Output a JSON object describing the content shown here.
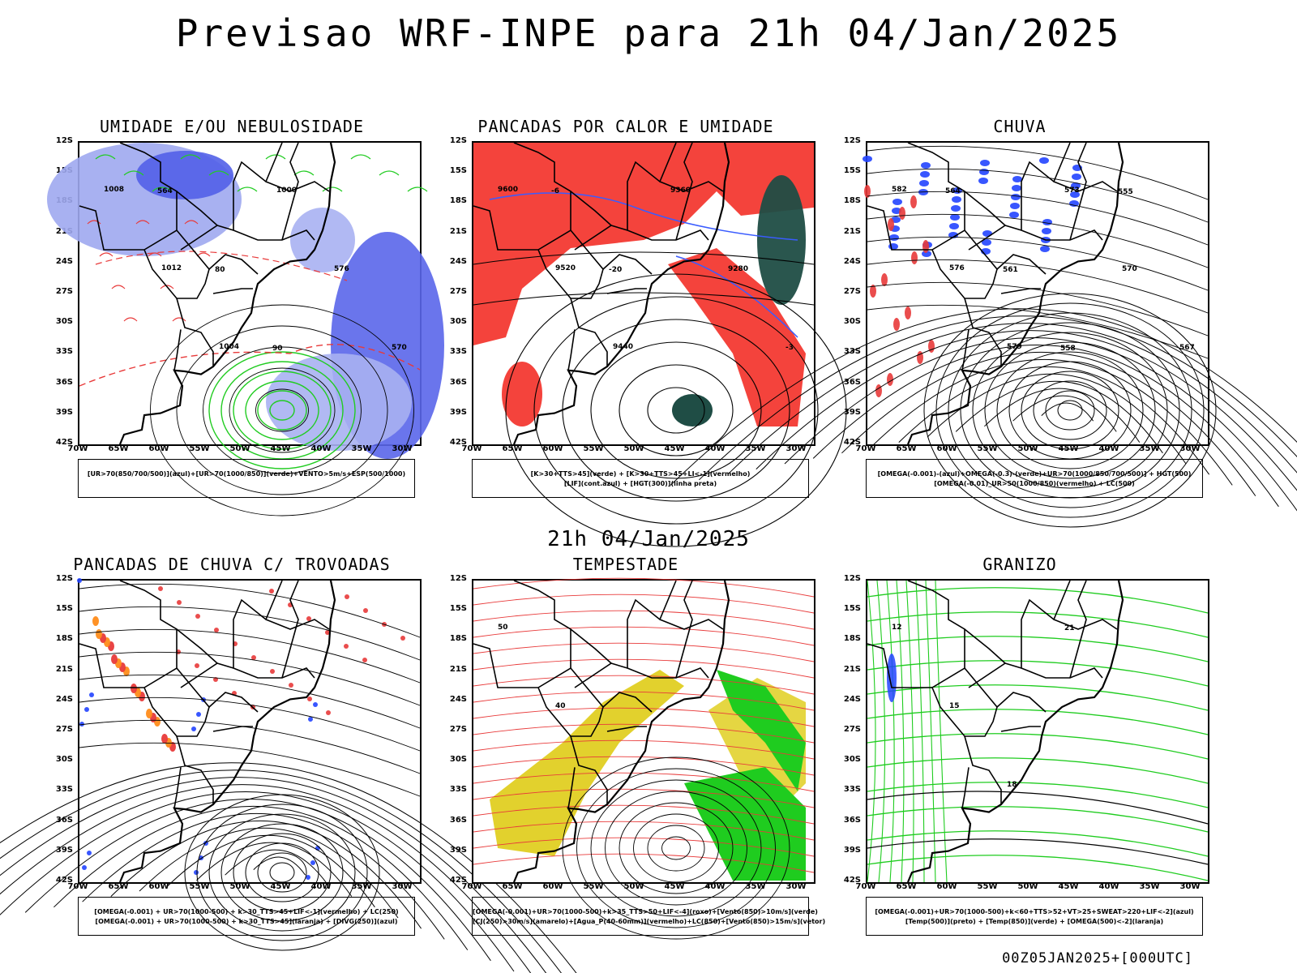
{
  "title": "Previsao WRF-INPE  para 21h 04/Jan/2025",
  "mid_time": "21h 04/Jan/2025",
  "footer": "00Z05JAN2025+[000UTC]",
  "lat_labels": [
    "12S",
    "15S",
    "18S",
    "21S",
    "24S",
    "27S",
    "30S",
    "33S",
    "36S",
    "39S",
    "42S"
  ],
  "lon_labels": [
    "70W",
    "65W",
    "60W",
    "55W",
    "50W",
    "45W",
    "40W",
    "35W",
    "30W"
  ],
  "panels": [
    {
      "title": "UMIDADE E/OU NEBULOSIDADE",
      "legend": [
        "[UR>70(850/700/500)](azul)+[UR>70(1000/850)](verde)+VENTO>5m/s+ESP(500/1000)"
      ],
      "contour_labels": [
        "1008",
        "1012",
        "1004",
        "1000",
        "576",
        "570",
        "564",
        "80",
        "90"
      ]
    },
    {
      "title": "PANCADAS POR CALOR E UMIDADE",
      "legend": [
        "[K>30+TTS>45](verde) + [K>30+TTS>45+LI<-1](vermelho)",
        "[LIF](cont.azul) + [HGT(300)](linha preta)"
      ],
      "contour_labels": [
        "9600",
        "9520",
        "9440",
        "9360",
        "9280",
        "-3",
        "-6",
        "-20"
      ]
    },
    {
      "title": "CHUVA",
      "legend": [
        "[OMEGA(-0.001)-(azul)+OMEGA(-0.3)-(verde)+UR>70(1000/850/700/500)] + HGT(500)",
        "[OMEGA(-0.01)_UR>50(1000/850)(vermelho) + LC(500)"
      ],
      "contour_labels": [
        "582",
        "576",
        "579",
        "573",
        "570",
        "567",
        "564",
        "561",
        "558",
        "555"
      ]
    },
    {
      "title": "PANCADAS DE CHUVA C/ TROVOADAS",
      "legend": [
        "[OMEGA(-0.001) + UR>70(1000-500) + k>30_TTS>45+LIF<-1](vermelho) + LC(250)",
        "[OMEGA(-0.001) + UR>70(1000-500) + k>30_TTS>45](laranja) + [DIVG(250)](azul)"
      ],
      "contour_labels": []
    },
    {
      "title": "TEMPESTADE",
      "legend": [
        "[OMEGA(-0.001)+UR>70(1000-500)+k>35_TTS>50+LIF<-4](roxo)+[Vento(850)>10m/s](verde)",
        "[CJ(250)>30m/s](amarelo)+[Agua_P(40-60mm)](vermelho)+LC(850)+[Vento(850)>15m/s](vetor)"
      ],
      "contour_labels": [
        "50",
        "40"
      ]
    },
    {
      "title": "GRANIZO",
      "legend": [
        "[OMEGA(-0.001)+UR>70(1000-500)+k<60+TTS>52+VT>25+SWEAT>220+LIF<-2](azul)",
        "[Temp(500)](preto) + [Temp(850)](verde) + [OMEGA(500)<-2](laranja)"
      ],
      "contour_labels": [
        "12",
        "15",
        "18",
        "21"
      ]
    }
  ]
}
